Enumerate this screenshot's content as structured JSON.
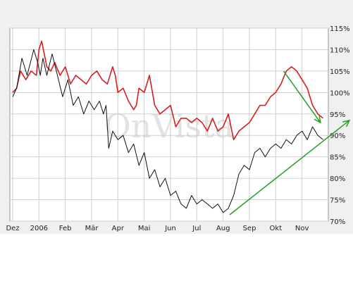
{
  "chart_data": {
    "type": "line",
    "watermark": "OnVista",
    "x_tick_labels": [
      "Dez",
      "2006",
      "Feb",
      "Mär",
      "Apr",
      "Mai",
      "Jun",
      "Jul",
      "Aug",
      "Sep",
      "Okt",
      "Nov"
    ],
    "y_tick_labels": [
      "115%",
      "110%",
      "105%",
      "100%",
      "95%",
      "90%",
      "85%",
      "80%",
      "75%",
      "70%"
    ],
    "x_range": [
      0,
      12
    ],
    "ylim": [
      70,
      115
    ],
    "grid": true,
    "series": [
      {
        "color": "#d42020",
        "x": [
          0,
          0.15,
          0.3,
          0.5,
          0.7,
          0.9,
          1.0,
          1.1,
          1.3,
          1.45,
          1.6,
          1.8,
          2.0,
          2.2,
          2.4,
          2.6,
          2.8,
          3.0,
          3.2,
          3.4,
          3.6,
          3.8,
          3.9,
          4.0,
          4.2,
          4.4,
          4.6,
          4.7,
          4.8,
          5.0,
          5.2,
          5.4,
          5.6,
          5.8,
          6.0,
          6.2,
          6.4,
          6.6,
          6.8,
          7.0,
          7.2,
          7.4,
          7.6,
          7.8,
          8.0,
          8.2,
          8.4,
          8.6,
          8.8,
          9.0,
          9.2,
          9.4,
          9.6,
          9.8,
          10.0,
          10.2,
          10.4,
          10.6,
          10.8,
          11.0,
          11.2,
          11.4,
          11.6,
          11.8
        ],
        "values": [
          100,
          101,
          105,
          103,
          105,
          104,
          110,
          112,
          106,
          105,
          107,
          104,
          106,
          102,
          104,
          103,
          102,
          104,
          105,
          103,
          102,
          106,
          104,
          100,
          101,
          98,
          96,
          97,
          101,
          100,
          104,
          97,
          95,
          96,
          97,
          92,
          94,
          94,
          93,
          94,
          93,
          91,
          94,
          91,
          92,
          95,
          89,
          91,
          92,
          93,
          95,
          97,
          97,
          99,
          100,
          102,
          105,
          106,
          105,
          103,
          101,
          97,
          95,
          94
        ]
      },
      {
        "color": "#111111",
        "x": [
          0,
          0.15,
          0.35,
          0.55,
          0.8,
          0.95,
          1.05,
          1.15,
          1.3,
          1.5,
          1.7,
          1.9,
          2.1,
          2.3,
          2.5,
          2.7,
          2.9,
          3.1,
          3.3,
          3.45,
          3.55,
          3.65,
          3.8,
          4.0,
          4.2,
          4.4,
          4.6,
          4.8,
          5.0,
          5.2,
          5.4,
          5.6,
          5.8,
          6.0,
          6.2,
          6.4,
          6.6,
          6.8,
          7.0,
          7.2,
          7.4,
          7.6,
          7.8,
          8.0,
          8.2,
          8.4,
          8.6,
          8.8,
          9.0,
          9.2,
          9.4,
          9.6,
          9.8,
          10.0,
          10.2,
          10.4,
          10.6,
          10.8,
          11.0,
          11.2,
          11.4,
          11.6,
          11.8
        ],
        "values": [
          99,
          101,
          108,
          104,
          110,
          107,
          104,
          108,
          104,
          109,
          104,
          99,
          103,
          97,
          99,
          95,
          98,
          96,
          98,
          95,
          97,
          87,
          91,
          89,
          90,
          86,
          88,
          83,
          86,
          80,
          82,
          78,
          80,
          76,
          77,
          74,
          73,
          76,
          74,
          75,
          74,
          73,
          74,
          72,
          73,
          76,
          81,
          83,
          82,
          86,
          87,
          85,
          87,
          88,
          87,
          89,
          88,
          90,
          91,
          89,
          92,
          90,
          89
        ]
      }
    ],
    "annotations": [
      {
        "type": "arrow",
        "color": "#22a022",
        "x": [
          10.3,
          11.7
        ],
        "y": [
          105,
          93
        ]
      },
      {
        "type": "arrow",
        "color": "#22a022",
        "x": [
          8.25,
          12.8
        ],
        "y": [
          71.5,
          93.5
        ]
      }
    ]
  }
}
